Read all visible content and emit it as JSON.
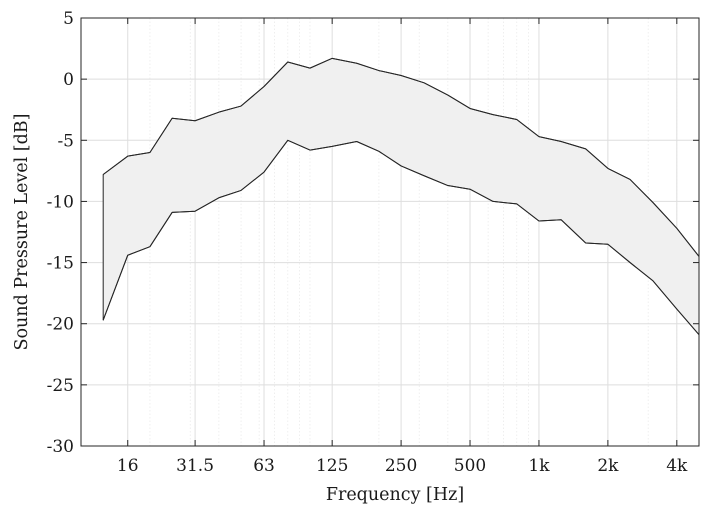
{
  "chart_data": {
    "type": "area",
    "title": "",
    "xlabel": "Frequency [Hz]",
    "ylabel": "Sound Pressure Level [dB]",
    "x_scale": "log",
    "xlim": [
      10,
      5000
    ],
    "ylim": [
      -30,
      5
    ],
    "x_ticks": [
      {
        "value": 16,
        "label": "16"
      },
      {
        "value": 31.5,
        "label": "31.5"
      },
      {
        "value": 63,
        "label": "63"
      },
      {
        "value": 125,
        "label": "125"
      },
      {
        "value": 250,
        "label": "250"
      },
      {
        "value": 500,
        "label": "500"
      },
      {
        "value": 1000,
        "label": "1k"
      },
      {
        "value": 2000,
        "label": "2k"
      },
      {
        "value": 4000,
        "label": "4k"
      }
    ],
    "y_ticks": [
      {
        "value": 5,
        "label": "5"
      },
      {
        "value": 0,
        "label": "0"
      },
      {
        "value": -5,
        "label": "-5"
      },
      {
        "value": -10,
        "label": "-10"
      },
      {
        "value": -15,
        "label": "-15"
      },
      {
        "value": -20,
        "label": "-20"
      },
      {
        "value": -25,
        "label": "-25"
      },
      {
        "value": -30,
        "label": "-30"
      }
    ],
    "grid": true,
    "minor_grid": true,
    "x": [
      12.5,
      16,
      20,
      25,
      31.5,
      40,
      50,
      63,
      80,
      100,
      125,
      160,
      200,
      250,
      315,
      400,
      500,
      630,
      800,
      1000,
      1250,
      1600,
      2000,
      2500,
      3150,
      4000,
      5000
    ],
    "series": [
      {
        "values": [
          -7.8,
          -6.3,
          -6.0,
          -3.2,
          -3.4,
          -2.7,
          -2.2,
          -0.6,
          1.4,
          0.9,
          1.7,
          1.3,
          0.7,
          0.3,
          -0.3,
          -1.3,
          -2.4,
          -2.9,
          -3.3,
          -4.7,
          -5.1,
          -5.7,
          -7.3,
          -8.2,
          -10.1,
          -12.2,
          -14.5
        ]
      },
      {
        "values": [
          -19.7,
          -14.4,
          -13.7,
          -10.9,
          -10.8,
          -9.7,
          -9.1,
          -7.6,
          -5.0,
          -5.8,
          -5.5,
          -5.1,
          -5.9,
          -7.1,
          -7.9,
          -8.7,
          -9.0,
          -10.0,
          -10.2,
          -11.6,
          -11.5,
          -13.4,
          -13.5,
          -15.0,
          -16.5,
          -18.8,
          -20.9
        ]
      }
    ],
    "colors": {
      "fill": "#f0f0f0",
      "line": "#262626",
      "grid_major": "#dedede",
      "grid_minor": "#ebebeb",
      "axis": "#262626"
    }
  }
}
